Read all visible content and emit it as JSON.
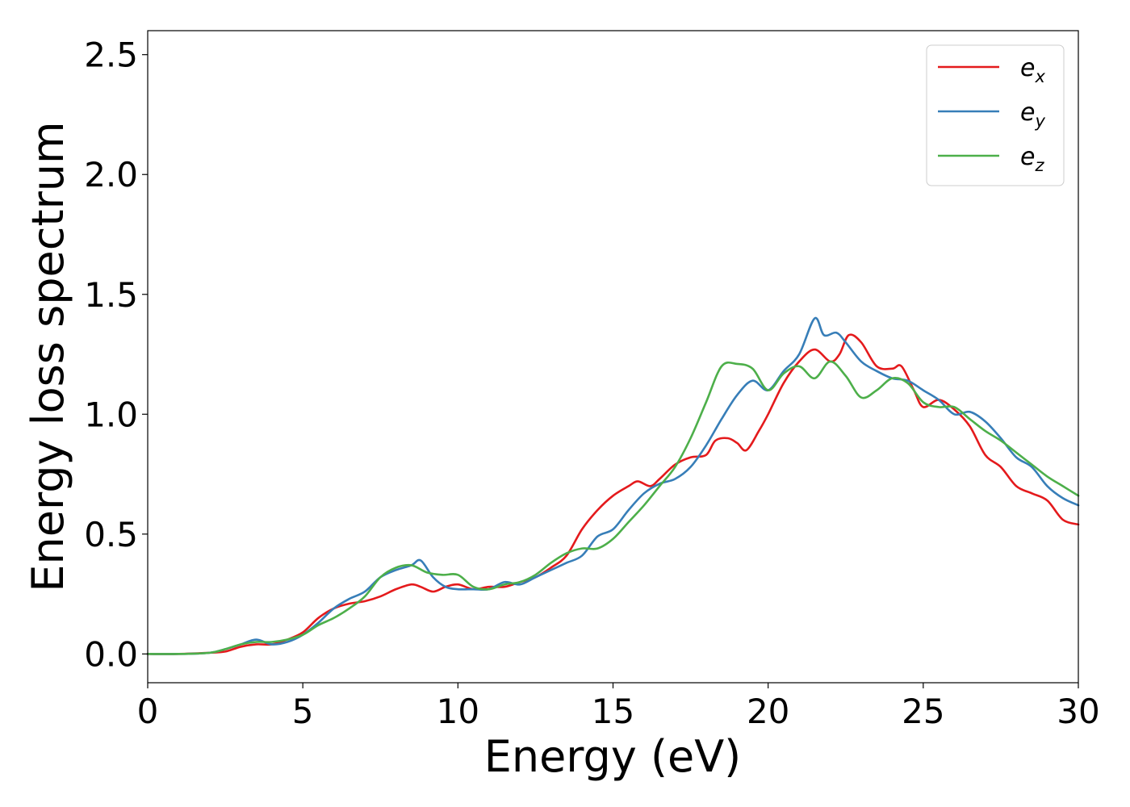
{
  "chart_data": {
    "type": "line",
    "title": "",
    "xlabel": "Energy (eV)",
    "ylabel": "Energy loss spectrum",
    "xlim": [
      0,
      30
    ],
    "ylim": [
      -0.12,
      2.6
    ],
    "xticks": [
      0,
      5,
      10,
      15,
      20,
      25,
      30
    ],
    "xtick_labels": [
      "0",
      "5",
      "10",
      "15",
      "20",
      "25",
      "30"
    ],
    "yticks": [
      0.0,
      0.5,
      1.0,
      1.5,
      2.0,
      2.5
    ],
    "ytick_labels": [
      "0.0",
      "0.5",
      "1.0",
      "1.5",
      "2.0",
      "2.5"
    ],
    "grid": false,
    "legend": {
      "position": "top-right"
    },
    "series": [
      {
        "name": "e",
        "subscript": "x",
        "color": "#e41a1c",
        "x": [
          0,
          1,
          2,
          2.5,
          3,
          3.5,
          4,
          4.5,
          5,
          5.5,
          6,
          6.5,
          7,
          7.5,
          8,
          8.5,
          8.8,
          9.2,
          9.6,
          10,
          10.5,
          11,
          11.5,
          12,
          12.5,
          13,
          13.5,
          14,
          14.5,
          15,
          15.5,
          15.8,
          16.2,
          16.5,
          17,
          17.5,
          18,
          18.3,
          18.7,
          19,
          19.3,
          19.7,
          20,
          20.5,
          21,
          21.5,
          22,
          22.3,
          22.6,
          23,
          23.5,
          24,
          24.3,
          24.7,
          25,
          25.5,
          26,
          26.5,
          27,
          27.5,
          28,
          28.5,
          29,
          29.5,
          30
        ],
        "y": [
          0.0,
          0.0,
          0.005,
          0.01,
          0.03,
          0.04,
          0.04,
          0.06,
          0.09,
          0.15,
          0.19,
          0.21,
          0.22,
          0.24,
          0.27,
          0.29,
          0.28,
          0.26,
          0.28,
          0.29,
          0.27,
          0.28,
          0.28,
          0.3,
          0.32,
          0.36,
          0.41,
          0.52,
          0.6,
          0.66,
          0.7,
          0.72,
          0.7,
          0.73,
          0.79,
          0.82,
          0.83,
          0.89,
          0.9,
          0.88,
          0.85,
          0.93,
          1.0,
          1.13,
          1.22,
          1.27,
          1.22,
          1.25,
          1.33,
          1.3,
          1.2,
          1.19,
          1.2,
          1.1,
          1.03,
          1.06,
          1.02,
          0.95,
          0.83,
          0.78,
          0.7,
          0.67,
          0.64,
          0.56,
          0.54
        ]
      },
      {
        "name": "e",
        "subscript": "y",
        "color": "#377eb8",
        "x": [
          0,
          1,
          2,
          2.5,
          3,
          3.5,
          4,
          4.5,
          5,
          5.5,
          6,
          6.5,
          7,
          7.5,
          8,
          8.5,
          8.8,
          9.2,
          9.6,
          10,
          10.5,
          11,
          11.5,
          12,
          12.5,
          13,
          13.5,
          14,
          14.5,
          15,
          15.5,
          16,
          16.5,
          17,
          17.5,
          18,
          18.5,
          19,
          19.5,
          20,
          20.5,
          21,
          21.5,
          21.8,
          22.2,
          22.5,
          23,
          23.5,
          24,
          24.5,
          25,
          25.5,
          26,
          26.5,
          27,
          27.5,
          28,
          28.5,
          29,
          29.5,
          30
        ],
        "y": [
          0.0,
          0.0,
          0.005,
          0.02,
          0.04,
          0.06,
          0.04,
          0.05,
          0.08,
          0.13,
          0.19,
          0.23,
          0.26,
          0.32,
          0.35,
          0.37,
          0.39,
          0.32,
          0.28,
          0.27,
          0.27,
          0.27,
          0.3,
          0.29,
          0.32,
          0.35,
          0.38,
          0.41,
          0.49,
          0.52,
          0.6,
          0.67,
          0.71,
          0.73,
          0.78,
          0.87,
          0.98,
          1.08,
          1.14,
          1.1,
          1.18,
          1.25,
          1.4,
          1.33,
          1.34,
          1.3,
          1.22,
          1.18,
          1.15,
          1.14,
          1.1,
          1.06,
          1.0,
          1.01,
          0.97,
          0.9,
          0.82,
          0.78,
          0.7,
          0.65,
          0.62
        ]
      },
      {
        "name": "e",
        "subscript": "z",
        "color": "#4daf4a",
        "x": [
          0,
          1,
          2,
          2.5,
          3,
          3.5,
          4,
          4.5,
          5,
          5.5,
          6,
          6.5,
          7,
          7.5,
          8,
          8.5,
          9,
          9.5,
          10,
          10.5,
          11,
          11.5,
          12,
          12.5,
          13,
          13.5,
          14,
          14.5,
          15,
          15.5,
          16,
          16.5,
          17,
          17.5,
          18,
          18.5,
          19,
          19.5,
          20,
          20.5,
          21,
          21.5,
          22,
          22.5,
          23,
          23.5,
          24,
          24.5,
          25,
          25.5,
          26,
          26.5,
          27,
          27.5,
          28,
          28.5,
          29,
          29.5,
          30
        ],
        "y": [
          0.0,
          0.0,
          0.005,
          0.02,
          0.04,
          0.05,
          0.05,
          0.06,
          0.08,
          0.12,
          0.15,
          0.19,
          0.24,
          0.32,
          0.36,
          0.37,
          0.34,
          0.33,
          0.33,
          0.28,
          0.27,
          0.29,
          0.3,
          0.33,
          0.38,
          0.42,
          0.44,
          0.44,
          0.48,
          0.55,
          0.62,
          0.7,
          0.78,
          0.9,
          1.05,
          1.2,
          1.21,
          1.19,
          1.1,
          1.17,
          1.2,
          1.15,
          1.22,
          1.16,
          1.07,
          1.1,
          1.15,
          1.13,
          1.05,
          1.03,
          1.03,
          0.98,
          0.93,
          0.89,
          0.84,
          0.79,
          0.74,
          0.7,
          0.66
        ]
      }
    ]
  }
}
